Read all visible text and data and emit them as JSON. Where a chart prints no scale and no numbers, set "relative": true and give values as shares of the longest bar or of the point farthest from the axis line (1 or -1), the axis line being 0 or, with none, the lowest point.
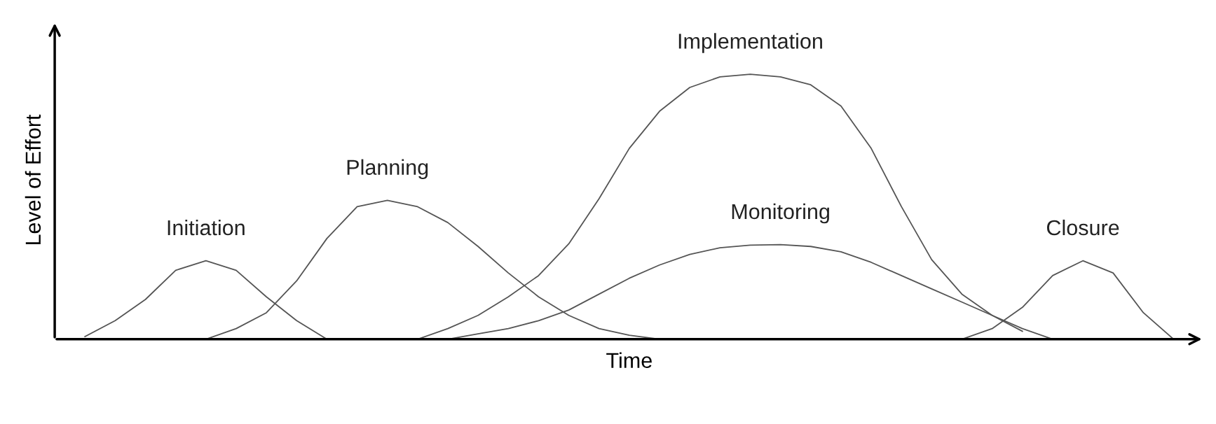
{
  "chart_data": {
    "type": "line",
    "relative": true,
    "xlabel": "Time",
    "ylabel": "Level of Effort",
    "categories": [
      null,
      null,
      null,
      null,
      null,
      null,
      null,
      null,
      null,
      null,
      null,
      null,
      null,
      null,
      null,
      null,
      null,
      null,
      null,
      null,
      null,
      null,
      null,
      null,
      null,
      null,
      null,
      null,
      null,
      null,
      null,
      null,
      null,
      null,
      null,
      null,
      null,
      null
    ],
    "series": [
      {
        "name": "Initiation",
        "color": "#555555",
        "values": [
          null,
          0.01,
          0.07,
          0.15,
          0.26,
          0.296,
          0.26,
          0.16,
          0.07,
          0.0,
          null,
          null,
          null,
          null,
          null,
          null,
          null,
          null,
          null,
          null,
          null,
          null,
          null,
          null,
          null,
          null,
          null,
          null,
          null,
          null,
          null,
          null,
          null,
          null,
          null,
          null,
          null,
          null
        ]
      },
      {
        "name": "Planning",
        "color": "#555555",
        "values": [
          null,
          null,
          null,
          null,
          null,
          0.0,
          0.04,
          0.1,
          0.22,
          0.38,
          0.5,
          0.524,
          0.5,
          0.44,
          0.35,
          0.25,
          0.16,
          0.09,
          0.04,
          0.015,
          0.0,
          null,
          null,
          null,
          null,
          null,
          null,
          null,
          null,
          null,
          null,
          null,
          null,
          null,
          null,
          null,
          null,
          null
        ]
      },
      {
        "name": "Implementation",
        "color": "#555555",
        "values": [
          null,
          null,
          null,
          null,
          null,
          null,
          null,
          null,
          null,
          null,
          null,
          null,
          0.0,
          0.04,
          0.09,
          0.16,
          0.24,
          0.36,
          0.53,
          0.72,
          0.86,
          0.95,
          0.99,
          1.0,
          0.99,
          0.96,
          0.88,
          0.72,
          0.5,
          0.3,
          0.17,
          0.09,
          0.04,
          0.0,
          null,
          null,
          null,
          null
        ]
      },
      {
        "name": "Monitoring",
        "color": "#555555",
        "values": [
          null,
          null,
          null,
          null,
          null,
          null,
          null,
          null,
          null,
          null,
          null,
          null,
          null,
          0.0,
          0.02,
          0.04,
          0.07,
          0.11,
          0.17,
          0.23,
          0.28,
          0.32,
          0.345,
          0.355,
          0.357,
          0.35,
          0.33,
          0.29,
          0.24,
          0.19,
          0.14,
          0.09,
          0.03,
          null,
          null,
          null,
          null,
          null
        ]
      },
      {
        "name": "Closure",
        "color": "#555555",
        "values": [
          null,
          null,
          null,
          null,
          null,
          null,
          null,
          null,
          null,
          null,
          null,
          null,
          null,
          null,
          null,
          null,
          null,
          null,
          null,
          null,
          null,
          null,
          null,
          null,
          null,
          null,
          null,
          null,
          null,
          null,
          0.0,
          0.04,
          0.12,
          0.24,
          0.296,
          0.25,
          0.1,
          0.0
        ]
      }
    ],
    "legend": false,
    "grid": false,
    "marker": "none",
    "line_style": "solid"
  }
}
